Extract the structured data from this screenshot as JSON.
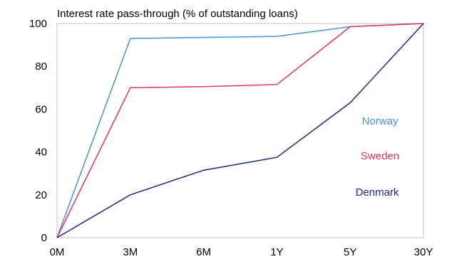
{
  "chart_data": {
    "type": "line",
    "title": "Interest rate pass-through (% of outstanding loans)",
    "categories": [
      "0M",
      "3M",
      "6M",
      "1Y",
      "5Y",
      "30Y"
    ],
    "y_ticks": [
      "0",
      "20",
      "40",
      "60",
      "80",
      "100"
    ],
    "ylim": [
      0,
      100
    ],
    "grid": false,
    "series": [
      {
        "name": "Norway",
        "color": "#4a90d6",
        "values": [
          0,
          93,
          93.5,
          94,
          98.5,
          100
        ]
      },
      {
        "name": "Sweden",
        "color": "#e8325a",
        "values": [
          0,
          70,
          70.5,
          71.5,
          98.5,
          100
        ]
      },
      {
        "name": "Denmark",
        "color": "#1a2a80",
        "values": [
          0,
          20,
          31.5,
          37.5,
          63,
          100
        ]
      }
    ]
  }
}
